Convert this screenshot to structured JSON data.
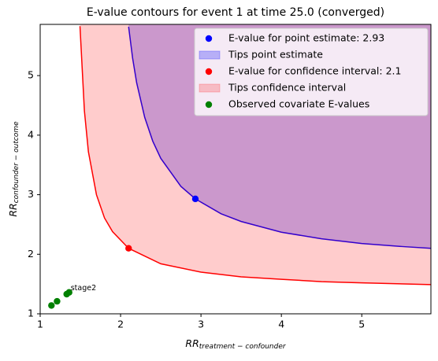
{
  "chart_data": {
    "type": "contour",
    "title": "E-value contours for event 1 at time 25.0 (converged)",
    "xlabel": {
      "main": "RR",
      "sub": "treatment − confounder"
    },
    "ylabel": {
      "main": "RR",
      "sub": "confounder − outcome"
    },
    "xlim": [
      1,
      5.86
    ],
    "ylim": [
      1,
      5.86
    ],
    "xticks": [
      1,
      2,
      3,
      4,
      5
    ],
    "yticks": [
      1,
      2,
      3,
      4,
      5
    ],
    "legend": "upper right",
    "series": [
      {
        "name": "E-value for point estimate: 2.93",
        "kind": "point",
        "color": "#0000ff",
        "x": [
          2.93
        ],
        "values": [
          2.93
        ]
      },
      {
        "name": "Tips point estimate",
        "kind": "area",
        "color": "#0000ff",
        "alpha": 0.25,
        "x": [
          2.1,
          2.15,
          2.2,
          2.3,
          2.4,
          2.5,
          2.75,
          2.93,
          3.25,
          3.5,
          4,
          4.5,
          5,
          5.5,
          5.86
        ],
        "values": [
          5.82,
          5.29,
          4.88,
          4.3,
          3.9,
          3.61,
          3.14,
          2.93,
          2.68,
          2.55,
          2.37,
          2.26,
          2.18,
          2.13,
          2.1
        ]
      },
      {
        "name": "E-value for confidence interval: 2.1",
        "kind": "point",
        "color": "#ff0000",
        "x": [
          2.1
        ],
        "values": [
          2.1
        ]
      },
      {
        "name": "Tips confidence interval",
        "kind": "area",
        "color": "#ff0000",
        "alpha": 0.2,
        "x": [
          1.495,
          1.55,
          1.6,
          1.7,
          1.8,
          1.9,
          2.1,
          2.5,
          3,
          3.5,
          4,
          4.5,
          5,
          5.86
        ],
        "values": [
          5.83,
          4.41,
          3.72,
          3.0,
          2.61,
          2.38,
          2.1,
          1.84,
          1.7,
          1.62,
          1.58,
          1.54,
          1.52,
          1.49
        ]
      },
      {
        "name": "Observed covariate E-values",
        "kind": "point",
        "color": "#008000",
        "x": [
          1.14,
          1.21,
          1.33,
          1.36
        ],
        "values": [
          1.14,
          1.21,
          1.33,
          1.36
        ]
      }
    ],
    "annotations": [
      {
        "text": "stage2",
        "x": 1.36,
        "y": 1.36
      }
    ]
  }
}
